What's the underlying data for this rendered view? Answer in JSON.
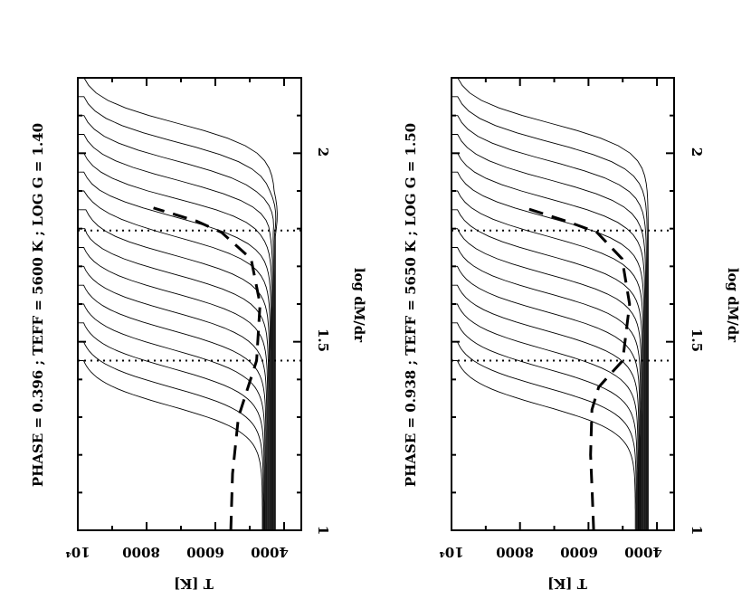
{
  "chart_data": [
    {
      "type": "line",
      "title": "PHASE = 0.396 ; TEFF =   5600 K ; LOG G = 1.40",
      "xlabel": "log dM/dr",
      "ylabel": "T [K]",
      "xlim": [
        1.0,
        2.2
      ],
      "ylim": [
        10000,
        3500
      ],
      "x_ticks": [
        "1",
        "1.5",
        "2"
      ],
      "y_ticks": [
        "4000",
        "6000",
        "8000",
        "10⁴"
      ],
      "dotted_lines_x": [
        1.45,
        1.795
      ],
      "curve_count": 16,
      "curve_tail_x": 1.0,
      "curve_tail_T": [
        4255,
        4280,
        4305,
        4330,
        4355,
        4380,
        4405,
        4430,
        4455,
        4480,
        4505,
        4530,
        4555,
        4580,
        4605,
        4630
      ],
      "curve_plateau_x": [
        2.2,
        2.15,
        2.1,
        2.05,
        2.0,
        1.95,
        1.9,
        1.85,
        1.8,
        1.75,
        1.7,
        1.65,
        1.6,
        1.55,
        1.5,
        1.45
      ],
      "dashed_curve": {
        "x": [
          1.0,
          1.15,
          1.3,
          1.45,
          1.6,
          1.72,
          1.79,
          1.82,
          1.855
        ],
        "T": [
          5550,
          5500,
          5330,
          4800,
          4700,
          4960,
          5820,
          6550,
          7800
        ]
      }
    },
    {
      "type": "line",
      "title": "PHASE = 0.938 ; TEFF =   5650 K ; LOG G = 1.50",
      "xlabel": "log dM/dr",
      "ylabel": "T [K]",
      "xlim": [
        1.0,
        2.2
      ],
      "ylim": [
        10000,
        3500
      ],
      "x_ticks": [
        "1",
        "1.5",
        "2"
      ],
      "y_ticks": [
        "4000",
        "6000",
        "8000",
        "10⁴"
      ],
      "dotted_lines_x": [
        1.45,
        1.795
      ],
      "curve_count": 16,
      "curve_tail_x": 1.0,
      "curve_tail_T": [
        4255,
        4280,
        4305,
        4330,
        4355,
        4380,
        4405,
        4430,
        4455,
        4480,
        4505,
        4530,
        4555,
        4580,
        4605,
        4630
      ],
      "curve_plateau_x": [
        2.2,
        2.15,
        2.1,
        2.05,
        2.0,
        1.95,
        1.9,
        1.85,
        1.8,
        1.75,
        1.7,
        1.65,
        1.6,
        1.55,
        1.5,
        1.45
      ],
      "dashed_curve": {
        "x": [
          1.0,
          1.1,
          1.2,
          1.32,
          1.38,
          1.45,
          1.6,
          1.72,
          1.79,
          1.82,
          1.855
        ],
        "T": [
          5850,
          5890,
          5940,
          5900,
          5700,
          5000,
          4800,
          5020,
          5750,
          6650,
          7850
        ]
      }
    }
  ]
}
